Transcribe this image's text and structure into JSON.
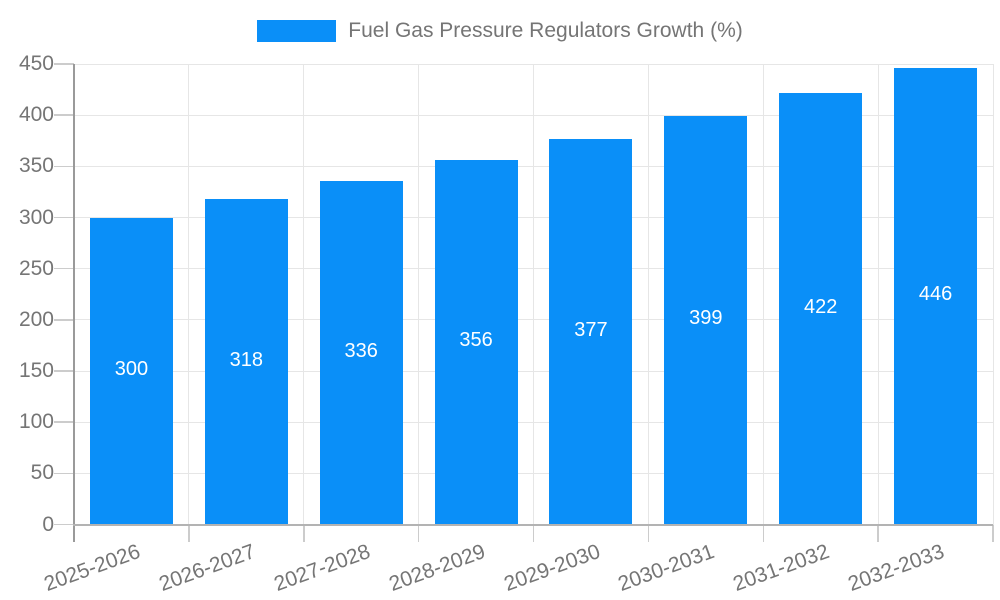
{
  "legend": {
    "label": "Fuel Gas Pressure Regulators Growth (%)"
  },
  "chart_data": {
    "type": "bar",
    "title": "Fuel Gas Pressure Regulators Growth (%)",
    "series_name": "Fuel Gas Pressure Regulators Growth (%)",
    "categories": [
      "2025-2026",
      "2026-2027",
      "2027-2028",
      "2028-2029",
      "2029-2030",
      "2030-2031",
      "2031-2032",
      "2032-2033"
    ],
    "values": [
      300,
      318,
      336,
      356,
      377,
      399,
      422,
      446
    ],
    "value_labels": [
      "300",
      "318",
      "336",
      "356",
      "377",
      "399",
      "422",
      "446"
    ],
    "ytick_labels": [
      "0",
      "50",
      "100",
      "150",
      "200",
      "250",
      "300",
      "350",
      "400",
      "450"
    ],
    "ylim": [
      0,
      450
    ],
    "ytick_step": 50,
    "grid": "on",
    "legend_position": "top-center",
    "value_label_position": "inside-center",
    "xlabel": "",
    "ylabel": ""
  },
  "colors": {
    "bar": "#0a8ff8",
    "legend_swatch": "#0a8ff8",
    "axis_text": "#757575",
    "legend_text": "#757575",
    "bar_value_text": "#ffffff",
    "gridline": "#e6e6e6",
    "tick": "#cccccc",
    "y_axis_line": "#9a9a9a",
    "x_baseline": "#b3b3b3",
    "background": "#ffffff"
  }
}
